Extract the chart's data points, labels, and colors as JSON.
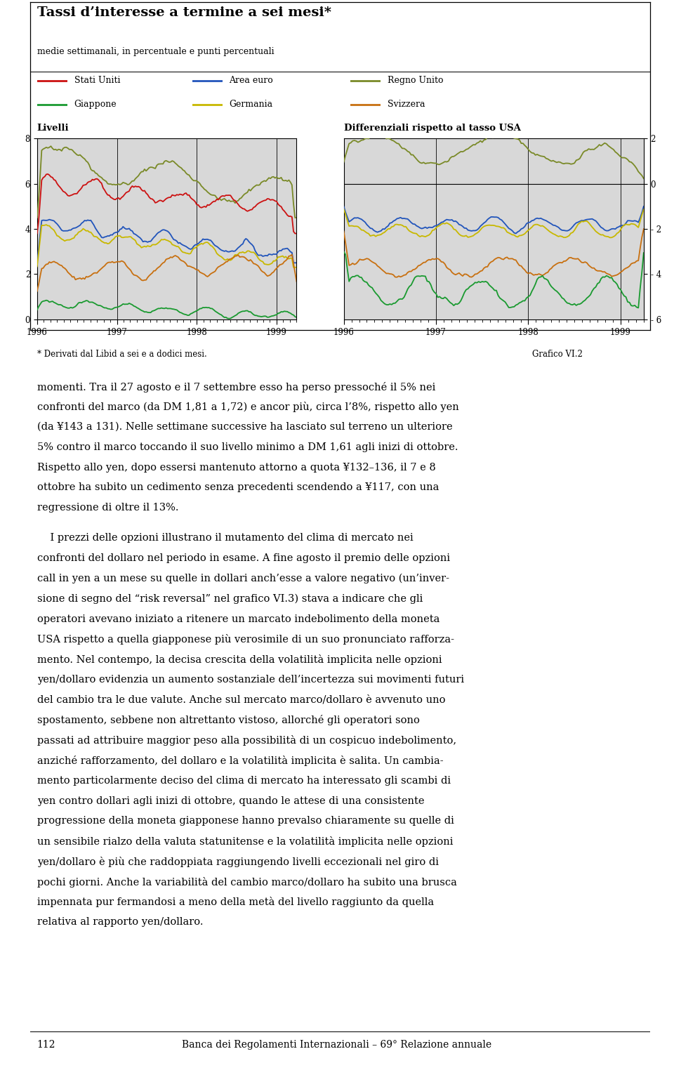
{
  "title": "Tassi d’interesse a termine a sei mesi*",
  "subtitle": "medie settimanali, in percentuale e punti percentuali",
  "colors": {
    "Stati Uniti": "#cc1111",
    "Area euro": "#2255bb",
    "Regno Unito": "#7a8a28",
    "Giappone": "#1a9a30",
    "Germania": "#c8b800",
    "Svizzera": "#c87010"
  },
  "panel_left_label": "Livelli",
  "panel_right_label": "Differenziali rispetto al tasso USA",
  "footnote": "* Derivati dal Libid a sei e a dodici mesi.",
  "grafico": "Grafico VI.2",
  "bg_color": "#d8d8d8",
  "page_number": "112",
  "page_right_text": "Banca dei Regolamenti Internazionali – 69° Relazione annuale",
  "body_lines": [
    "momenti. Tra il 27 agosto e il 7 settembre esso ha perso pressoché il 5% nei",
    "confronti del marco (da DM 1,81 a 1,72) e ancor più, circa l’8%, rispetto allo yen",
    "(da ¥143 a 131). Nelle settimane successive ha lasciato sul terreno un ulteriore",
    "5% contro il marco toccando il suo livello minimo a DM 1,61 agli inizi di ottobre.",
    "Rispetto allo yen, dopo essersi mantenuto attorno a quota ¥132–136, il 7 e 8",
    "ottobre ha subito un cedimento senza precedenti scendendo a ¥117, con una",
    "regressione di oltre il 13%.",
    "",
    "    I prezzi delle opzioni illustrano il mutamento del clima di mercato nei",
    "confronti del dollaro nel periodo in esame. A fine agosto il premio delle opzioni",
    "call in yen a un mese su quelle in dollari anch’esse a valore negativo (un’inver-",
    "sione di segno del “risk reversal” nel grafico VI.3) stava a indicare che gli",
    "operatori avevano iniziato a ritenere un marcato indebolimento della moneta",
    "USA rispetto a quella giapponese più verosimile di un suo pronunciato rafforza-",
    "mento. Nel contempo, la decisa crescita della volatilità implicita nelle opzioni",
    "yen/dollaro evidenzia un aumento sostanziale dell’incertezza sui movimenti futuri",
    "del cambio tra le due valute. Anche sul mercato marco/dollaro è avvenuto uno",
    "spostamento, sebbene non altrettanto vistoso, allorché gli operatori sono",
    "passati ad attribuire maggior peso alla possibilità di un cospicuo indebolimento,",
    "anziché rafforzamento, del dollaro e la volatilità implicita è salita. Un cambia-",
    "mento particolarmente deciso del clima di mercato ha interessato gli scambi di",
    "yen contro dollari agli inizi di ottobre, quando le attese di una consistente",
    "progressione della moneta giapponese hanno prevalso chiaramente su quelle di",
    "un sensibile rialzo della valuta statunitense e la volatilità implicita nelle opzioni",
    "yen/dollaro è più che raddoppiata raggiungendo livelli eccezionali nel giro di",
    "pochi giorni. Anche la variabilità del cambio marco/dollaro ha subito una brusca",
    "impennata pur fermandosi a meno della metà del livello raggiunto da quella",
    "relativa al rapporto yen/dollaro."
  ]
}
